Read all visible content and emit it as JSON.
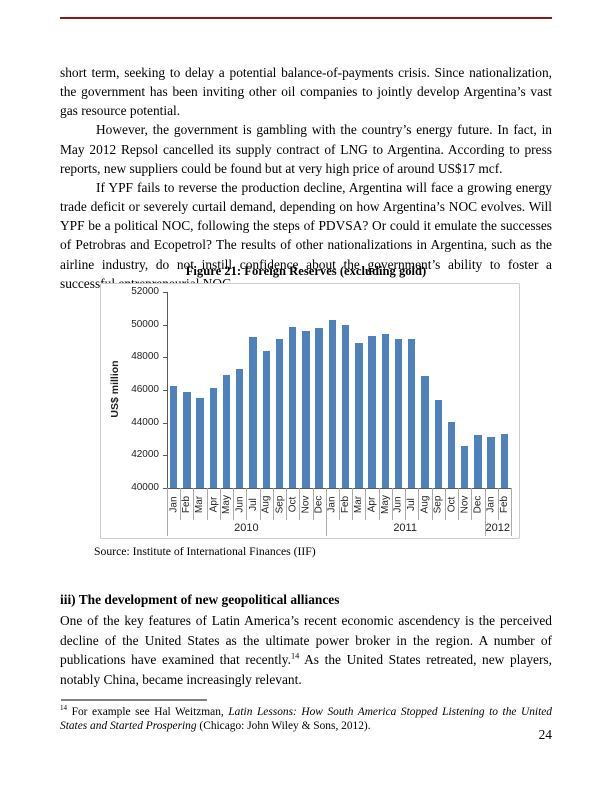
{
  "page": {
    "number": "24"
  },
  "decor": {
    "header_rule_color": "#8B1A1A"
  },
  "body": {
    "paragraphs": [
      "short term, seeking to delay a potential balance-of-payments crisis. Since nationalization, the government has been inviting other oil companies to jointly develop Argentina’s vast gas resource potential.",
      "However, the government is gambling with the country’s energy future. In fact, in May 2012 Repsol cancelled its supply contract of LNG to Argentina. According to press reports, new suppliers could be found but at very high price of around US$17 mcf.",
      "If YPF fails to reverse the production decline, Argentina will face a growing energy trade deficit or severely curtail demand, depending on how Argentina’s NOC evolves. Will YPF be a political NOC, following the steps of PDVSA? Or could it emulate the successes of Petrobras and Ecopetrol? The results of other nationalizations in Argentina, such as the airline industry, do not instill confidence about the government’s ability to foster a successful entrepreneurial NOC."
    ]
  },
  "figure": {
    "caption": "Figure 21: Foreign Reserves (excluding gold)",
    "source": "Source: Institute of International Finances (IIF)"
  },
  "chart_data": {
    "type": "bar",
    "title": "Figure 21: Foreign Reserves (excluding gold)",
    "ylabel": "US$ million",
    "ylim": [
      40000,
      52000
    ],
    "yticks": [
      40000,
      42000,
      44000,
      46000,
      48000,
      50000,
      52000
    ],
    "bar_color": "#4F81BD",
    "legend": "none",
    "grid": "off",
    "categories": [
      "Jan",
      "Feb",
      "Mar",
      "Apr",
      "May",
      "Jun",
      "Jul",
      "Aug",
      "Sep",
      "Oct",
      "Nov",
      "Dec",
      "Jan",
      "Feb",
      "Mar",
      "Apr",
      "May",
      "Jun",
      "Jul",
      "Aug",
      "Sep",
      "Oct",
      "Nov",
      "Dec",
      "Jan",
      "Feb"
    ],
    "values": [
      46250,
      45850,
      45500,
      46100,
      46900,
      47300,
      49250,
      48400,
      49150,
      49850,
      49600,
      49800,
      50300,
      49950,
      48900,
      49300,
      49450,
      49100,
      49100,
      46850,
      45400,
      44050,
      42600,
      43250,
      43150,
      43300
    ],
    "groups": [
      {
        "label": "2010",
        "span": 12
      },
      {
        "label": "2011",
        "span": 12
      },
      {
        "label": "2012",
        "span": 2
      }
    ]
  },
  "section": {
    "heading": "iii) The development of new geopolitical alliances",
    "para_before_sup": "One of the key features of Latin America’s recent economic ascendency is the perceived decline of the United States as the ultimate power broker in the region.  A number of publications have examined that recently.",
    "footnote_ref": "14",
    "para_after_sup": " As the United States retreated, new players, notably China, became increasingly relevant."
  },
  "footnote": {
    "marker": "14",
    "text_before_italic": " For example see Hal Weitzman, ",
    "italic_text": "Latin Lessons: How South America Stopped Listening to the United States and Started Prospering",
    "text_after_italic": " (Chicago: John Wiley & Sons, 2012)."
  }
}
